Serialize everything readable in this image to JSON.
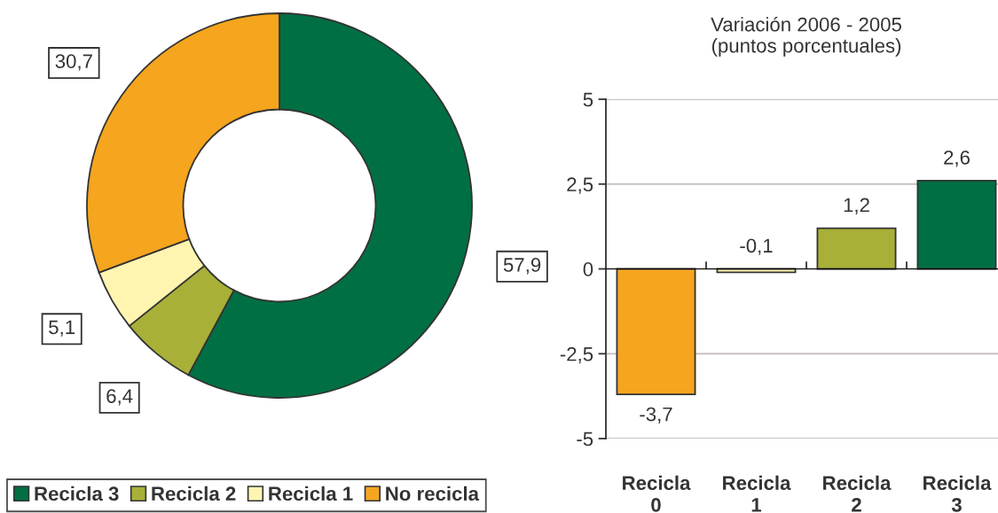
{
  "chart_data": [
    {
      "type": "donut",
      "categories": [
        "Recicla 3",
        "Recicla 2",
        "Recicla 1",
        "No recicla"
      ],
      "values": [
        57.9,
        6.4,
        5.1,
        30.7
      ],
      "colors": [
        "#006f44",
        "#a8b038",
        "#fff5b0",
        "#f5a51e"
      ],
      "value_labels": [
        "57,9",
        "6,4",
        "5,1",
        "30,7"
      ],
      "legend": "bottom"
    },
    {
      "type": "bar",
      "title": "Variación 2006 - 2005\n(puntos porcentuales)",
      "categories": [
        "Recicla\n0",
        "Recicla\n1",
        "Recicla\n2",
        "Recicla\n3"
      ],
      "values": [
        -3.7,
        -0.1,
        1.2,
        2.6
      ],
      "colors": [
        "#f5a51e",
        "#fff5b0",
        "#a8b038",
        "#006f44"
      ],
      "value_labels": [
        "-3,7",
        "-0,1",
        "1,2",
        "2,6"
      ],
      "ylim": [
        -5,
        5
      ],
      "yticks": [
        -5,
        {
          "value": -2.5,
          "label": "-2,5"
        },
        0,
        {
          "value": 2.5,
          "label": "2,5"
        },
        5
      ],
      "grid": "y"
    }
  ]
}
